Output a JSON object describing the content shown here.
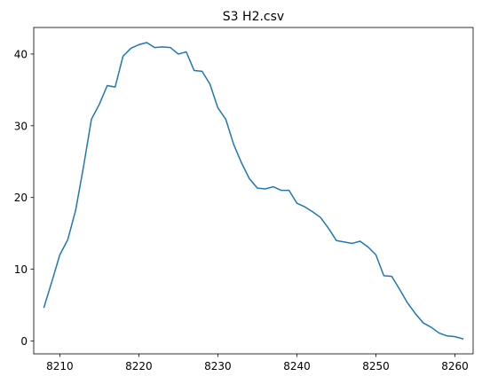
{
  "chart_data": {
    "type": "line",
    "title": "S3 H2.csv",
    "xlabel": "",
    "ylabel": "",
    "xlim": [
      8206.7,
      8262.3
    ],
    "ylim": [
      -1.8,
      43.7
    ],
    "xticks": [
      8210,
      8220,
      8230,
      8240,
      8250,
      8260
    ],
    "yticks": [
      0,
      10,
      20,
      30,
      40
    ],
    "grid": false,
    "legend": "none",
    "series": [
      {
        "color": "#1f77b4",
        "x": [
          8208,
          8209,
          8210,
          8211,
          8212,
          8213,
          8214,
          8215,
          8216,
          8217,
          8218,
          8219,
          8220,
          8221,
          8222,
          8223,
          8224,
          8225,
          8226,
          8227,
          8228,
          8229,
          8230,
          8231,
          8232,
          8233,
          8234,
          8235,
          8236,
          8237,
          8238,
          8239,
          8240,
          8241,
          8242,
          8243,
          8244,
          8245,
          8246,
          8247,
          8248,
          8249,
          8250,
          8251,
          8252,
          8253,
          8254,
          8255,
          8256,
          8257,
          8258,
          8259,
          8260,
          8261
        ],
        "values": [
          4.7,
          8.3,
          12.0,
          14.1,
          18.2,
          24.3,
          30.9,
          33.0,
          35.6,
          35.4,
          39.7,
          40.8,
          41.3,
          41.6,
          40.9,
          41.0,
          40.9,
          40.0,
          40.3,
          37.7,
          37.6,
          35.8,
          32.5,
          30.9,
          27.4,
          24.8,
          22.6,
          21.3,
          21.2,
          21.5,
          21.0,
          21.0,
          19.2,
          18.7,
          18.0,
          17.2,
          15.7,
          14.0,
          13.8,
          13.6,
          13.9,
          13.1,
          12.0,
          9.1,
          9.0,
          7.2,
          5.3,
          3.8,
          2.5,
          1.9,
          1.1,
          0.7,
          0.6,
          0.3
        ]
      }
    ]
  }
}
